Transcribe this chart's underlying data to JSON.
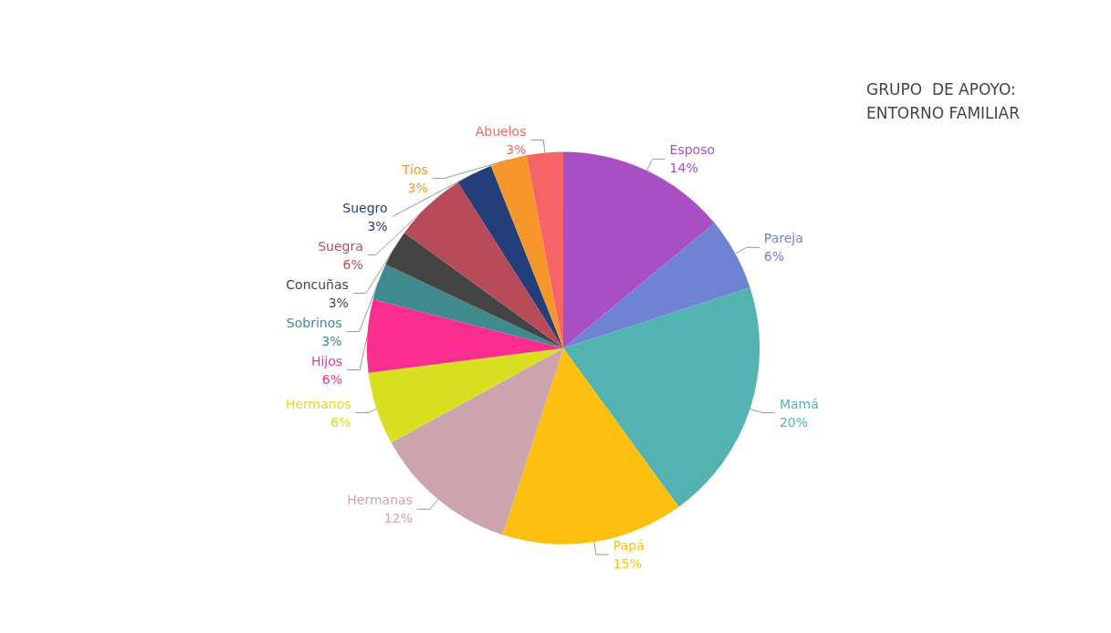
{
  "chart_data": {
    "type": "pie",
    "title": "GRUPO  DE APOYO:\nENTORNO FAMILIAR",
    "categories": [
      "Esposo",
      "Pareja",
      "Mamá",
      "Papá",
      "Hermanas",
      "Hermanos",
      "Hijos",
      "Sobrinos",
      "Concuñas",
      "Suegra",
      "Suegro",
      "Tíos",
      "Abuelos"
    ],
    "values": [
      14,
      6,
      20,
      15,
      12,
      6,
      6,
      3,
      3,
      6,
      3,
      3,
      3
    ],
    "value_labels": [
      "14%",
      "6%",
      "20%",
      "15%",
      "12%",
      "6%",
      "6%",
      "3%",
      "3%",
      "6%",
      "3%",
      "3%",
      "3%"
    ],
    "colors": [
      "#a94fc4",
      "#7082d4",
      "#52b3b0",
      "#fdc010",
      "#cca4ad",
      "#d9e021",
      "#fb2d8e",
      "#3f8a8c",
      "#444444",
      "#b84b5a",
      "#233e79",
      "#f7962b",
      "#f76466"
    ],
    "legend": false
  }
}
